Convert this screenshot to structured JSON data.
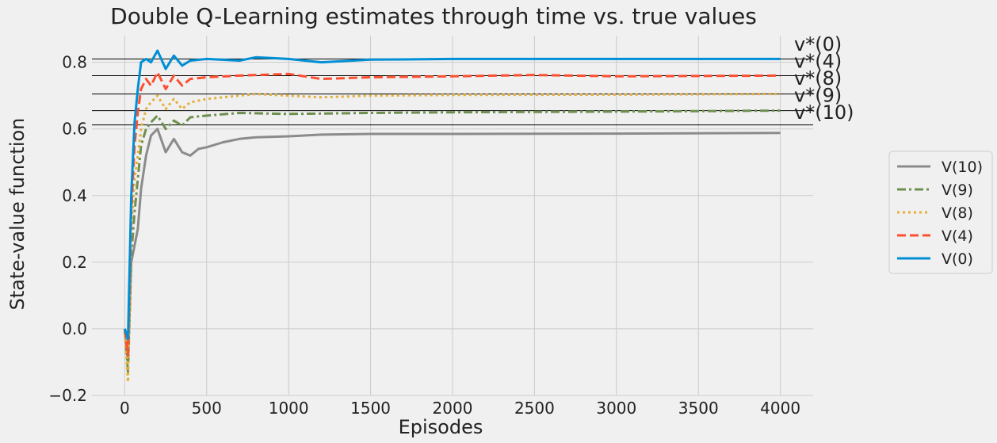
{
  "chart_data": {
    "type": "line",
    "title": "Double Q-Learning estimates through time vs. true values",
    "xlabel": "Episodes",
    "ylabel": "State-value function",
    "xlim": [
      -200,
      4200
    ],
    "ylim": [
      -0.2,
      0.88
    ],
    "xticks": [
      0,
      500,
      1000,
      1500,
      2000,
      2500,
      3000,
      3500,
      4000
    ],
    "yticks": [
      -0.2,
      0.0,
      0.2,
      0.4,
      0.6,
      0.8
    ],
    "xtick_labels": [
      "0",
      "500",
      "1000",
      "1500",
      "2000",
      "2500",
      "3000",
      "3500",
      "4000"
    ],
    "ytick_labels": [
      "−0.2",
      "0.0",
      "0.2",
      "0.4",
      "0.6",
      "0.8"
    ],
    "grid": true,
    "legend_position": "right",
    "reference_lines": [
      {
        "label": "v*(0)",
        "y": 0.81
      },
      {
        "label": "v*(4)",
        "y": 0.76
      },
      {
        "label": "v*(8)",
        "y": 0.705
      },
      {
        "label": "v*(9)",
        "y": 0.655
      },
      {
        "label": "v*(10)",
        "y": 0.612
      }
    ],
    "series": [
      {
        "name": "V(10)",
        "color": "#8b8b8b",
        "dash": "solid",
        "points": [
          [
            0,
            0
          ],
          [
            20,
            -0.1
          ],
          [
            40,
            0.2
          ],
          [
            60,
            0.25
          ],
          [
            80,
            0.3
          ],
          [
            100,
            0.42
          ],
          [
            130,
            0.52
          ],
          [
            160,
            0.58
          ],
          [
            200,
            0.6
          ],
          [
            250,
            0.53
          ],
          [
            300,
            0.57
          ],
          [
            350,
            0.53
          ],
          [
            400,
            0.52
          ],
          [
            450,
            0.54
          ],
          [
            500,
            0.545
          ],
          [
            600,
            0.56
          ],
          [
            700,
            0.57
          ],
          [
            800,
            0.575
          ],
          [
            1000,
            0.578
          ],
          [
            1200,
            0.583
          ],
          [
            1500,
            0.585
          ],
          [
            2000,
            0.585
          ],
          [
            3000,
            0.586
          ],
          [
            4000,
            0.588
          ]
        ]
      },
      {
        "name": "V(9)",
        "color": "#6d904f",
        "dash": "dashdot",
        "points": [
          [
            0,
            0
          ],
          [
            20,
            -0.13
          ],
          [
            40,
            0.22
          ],
          [
            60,
            0.35
          ],
          [
            80,
            0.45
          ],
          [
            100,
            0.55
          ],
          [
            130,
            0.6
          ],
          [
            160,
            0.62
          ],
          [
            200,
            0.64
          ],
          [
            250,
            0.6
          ],
          [
            300,
            0.625
          ],
          [
            350,
            0.61
          ],
          [
            400,
            0.635
          ],
          [
            500,
            0.64
          ],
          [
            700,
            0.648
          ],
          [
            1000,
            0.645
          ],
          [
            1500,
            0.648
          ],
          [
            2000,
            0.65
          ],
          [
            3000,
            0.652
          ],
          [
            4000,
            0.655
          ]
        ]
      },
      {
        "name": "V(8)",
        "color": "#e5ae38",
        "dash": "dotted",
        "points": [
          [
            0,
            0
          ],
          [
            20,
            -0.16
          ],
          [
            40,
            0.3
          ],
          [
            60,
            0.45
          ],
          [
            80,
            0.52
          ],
          [
            100,
            0.6
          ],
          [
            130,
            0.66
          ],
          [
            160,
            0.68
          ],
          [
            200,
            0.7
          ],
          [
            250,
            0.66
          ],
          [
            300,
            0.69
          ],
          [
            350,
            0.66
          ],
          [
            400,
            0.68
          ],
          [
            500,
            0.69
          ],
          [
            700,
            0.7
          ],
          [
            800,
            0.705
          ],
          [
            1000,
            0.7
          ],
          [
            1200,
            0.695
          ],
          [
            1500,
            0.7
          ],
          [
            2000,
            0.702
          ],
          [
            3000,
            0.703
          ],
          [
            4000,
            0.705
          ]
        ]
      },
      {
        "name": "V(4)",
        "color": "#fc4f30",
        "dash": "dashed",
        "points": [
          [
            0,
            0
          ],
          [
            20,
            -0.08
          ],
          [
            40,
            0.35
          ],
          [
            60,
            0.55
          ],
          [
            80,
            0.65
          ],
          [
            100,
            0.72
          ],
          [
            130,
            0.75
          ],
          [
            160,
            0.73
          ],
          [
            200,
            0.77
          ],
          [
            250,
            0.72
          ],
          [
            300,
            0.76
          ],
          [
            350,
            0.73
          ],
          [
            400,
            0.75
          ],
          [
            500,
            0.755
          ],
          [
            700,
            0.76
          ],
          [
            1000,
            0.765
          ],
          [
            1200,
            0.75
          ],
          [
            1500,
            0.755
          ],
          [
            2000,
            0.758
          ],
          [
            2500,
            0.762
          ],
          [
            3000,
            0.758
          ],
          [
            4000,
            0.76
          ]
        ]
      },
      {
        "name": "V(0)",
        "color": "#008fd5",
        "dash": "solid",
        "points": [
          [
            0,
            0
          ],
          [
            20,
            -0.03
          ],
          [
            40,
            0.4
          ],
          [
            60,
            0.62
          ],
          [
            80,
            0.72
          ],
          [
            100,
            0.8
          ],
          [
            130,
            0.81
          ],
          [
            160,
            0.8
          ],
          [
            200,
            0.835
          ],
          [
            250,
            0.78
          ],
          [
            300,
            0.82
          ],
          [
            350,
            0.79
          ],
          [
            400,
            0.805
          ],
          [
            500,
            0.81
          ],
          [
            700,
            0.805
          ],
          [
            800,
            0.815
          ],
          [
            1000,
            0.81
          ],
          [
            1200,
            0.8
          ],
          [
            1500,
            0.808
          ],
          [
            2000,
            0.81
          ],
          [
            3000,
            0.81
          ],
          [
            4000,
            0.81
          ]
        ]
      }
    ]
  }
}
